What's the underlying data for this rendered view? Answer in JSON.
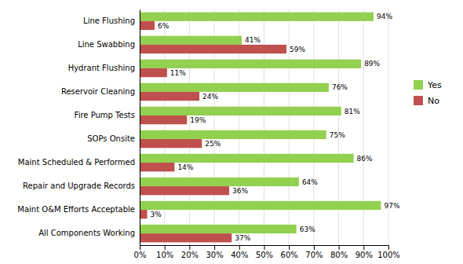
{
  "chart_data": {
    "type": "bar",
    "orientation": "horizontal",
    "categories": [
      "Line Flushing",
      "Line Swabbing",
      "Hydrant Flushing",
      "Reservoir Cleaning",
      "Fire Pump Tests",
      "SOPs Onsite",
      "Maint Scheduled & Performed",
      "Repair and Upgrade Records",
      "Maint O&M Efforts Acceptable",
      "All Components Working"
    ],
    "series": [
      {
        "name": "Yes",
        "color": "#92D050",
        "values": [
          94,
          41,
          89,
          76,
          81,
          75,
          86,
          64,
          97,
          63
        ],
        "value_labels": [
          "94%",
          "41%",
          "89%",
          "76%",
          "81%",
          "75%",
          "86%",
          "64%",
          "97%",
          "63%"
        ]
      },
      {
        "name": "No",
        "color": "#C0504D",
        "values": [
          6,
          59,
          11,
          24,
          19,
          25,
          14,
          36,
          3,
          37
        ],
        "value_labels": [
          "6%",
          "59%",
          "11%",
          "24%",
          "19%",
          "25%",
          "14%",
          "36%",
          "3%",
          "37%"
        ]
      }
    ],
    "xlim": [
      0,
      100
    ],
    "xticks": [
      {
        "value": 0,
        "label": "0%"
      },
      {
        "value": 10,
        "label": "10%"
      },
      {
        "value": 20,
        "label": "20%"
      },
      {
        "value": 30,
        "label": "30%"
      },
      {
        "value": 40,
        "label": "40%"
      },
      {
        "value": 50,
        "label": "50%"
      },
      {
        "value": 60,
        "label": "60%"
      },
      {
        "value": 70,
        "label": "70%"
      },
      {
        "value": 80,
        "label": "80%"
      },
      {
        "value": 90,
        "label": "90%"
      },
      {
        "value": 100,
        "label": "100%"
      }
    ],
    "grid": true,
    "legend": "right",
    "data_labels": true
  }
}
